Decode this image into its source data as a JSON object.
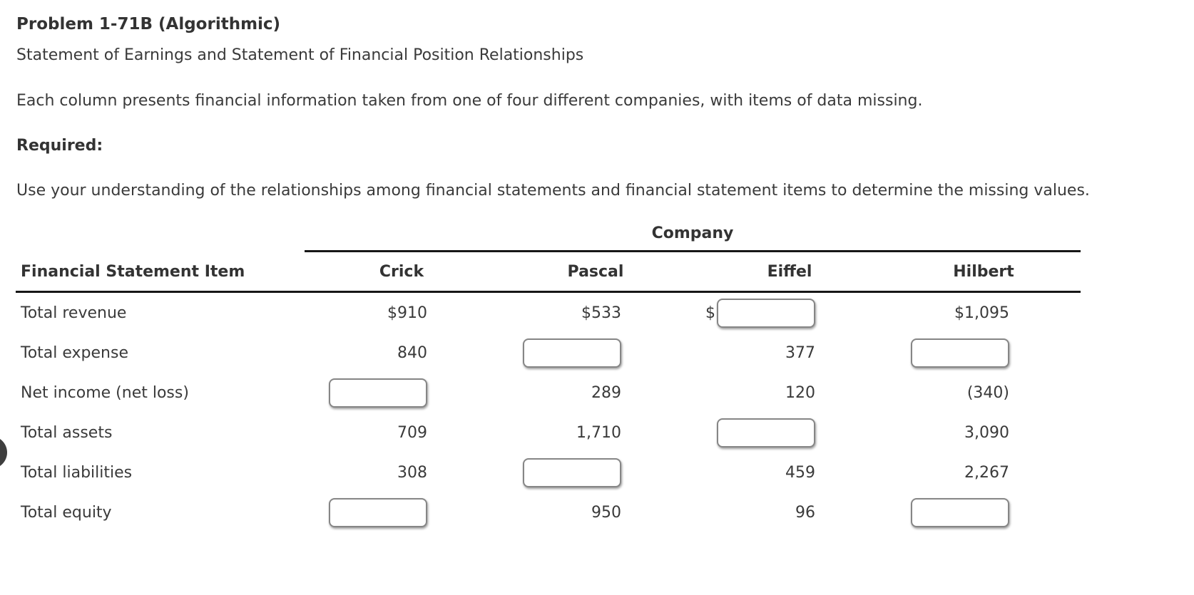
{
  "header": {
    "title": "Problem 1-71B (Algorithmic)",
    "subtitle": "Statement of Earnings and Statement of Financial Position Relationships",
    "intro": "Each column presents financial information taken from one of four different companies, with items of data missing.",
    "required_label": "Required:",
    "instructions": "Use your understanding of the relationships among financial statements and financial statement items to determine the missing values."
  },
  "table": {
    "group_header": "Company",
    "item_column_header": "Financial Statement Item",
    "companies": [
      "Crick",
      "Pascal",
      "Eiffel",
      "Hilbert"
    ],
    "rows": [
      {
        "label": "Total revenue",
        "cells": [
          {
            "value": "$910"
          },
          {
            "value": "$533"
          },
          {
            "input": true,
            "prefix": "$"
          },
          {
            "value": "$1,095"
          }
        ]
      },
      {
        "label": "Total expense",
        "cells": [
          {
            "value": "840"
          },
          {
            "input": true
          },
          {
            "value": "377"
          },
          {
            "input": true
          }
        ]
      },
      {
        "label": "Net income (net loss)",
        "cells": [
          {
            "input": true
          },
          {
            "value": "289"
          },
          {
            "value": "120"
          },
          {
            "value": "(340)"
          }
        ]
      },
      {
        "label": "Total assets",
        "cells": [
          {
            "value": "709"
          },
          {
            "value": "1,710"
          },
          {
            "input": true
          },
          {
            "value": "3,090"
          }
        ]
      },
      {
        "label": "Total liabilities",
        "cells": [
          {
            "value": "308"
          },
          {
            "input": true
          },
          {
            "value": "459"
          },
          {
            "value": "2,267"
          }
        ]
      },
      {
        "label": "Total equity",
        "cells": [
          {
            "input": true
          },
          {
            "value": "950"
          },
          {
            "value": "96"
          },
          {
            "input": true
          }
        ]
      }
    ]
  },
  "decorations": {
    "clipped_circle_color": "#3e3e3e"
  },
  "colors": {
    "text": "#3a3a3a",
    "heading_text": "#333333",
    "rule": "#161616",
    "input_border": "#868686",
    "background": "#ffffff"
  }
}
